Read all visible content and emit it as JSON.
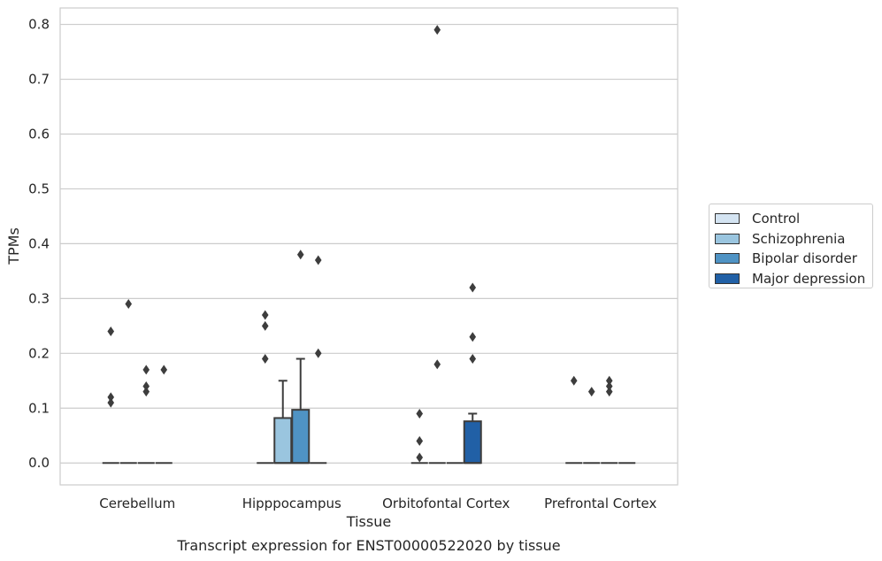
{
  "chart_data": {
    "type": "box",
    "title": "Transcript expression for ENST00000522020 by tissue",
    "xlabel": "Tissue",
    "ylabel": "TPMs",
    "ylim": [
      -0.04,
      0.83
    ],
    "yticks": [
      "0.0",
      "0.1",
      "0.2",
      "0.3",
      "0.4",
      "0.5",
      "0.6",
      "0.7",
      "0.8"
    ],
    "grid": "horizontal",
    "legend_position": "right",
    "categories": [
      "Cerebellum",
      "Hipppocampus",
      "Orbitofontal Cortex",
      "Prefrontal Cortex"
    ],
    "series": [
      {
        "name": "Control",
        "color": "#d4e4f2"
      },
      {
        "name": "Schizophrenia",
        "color": "#9ac5df"
      },
      {
        "name": "Bipolar disorder",
        "color": "#4f93c4"
      },
      {
        "name": "Major depression",
        "color": "#2160a6"
      }
    ],
    "boxes": [
      {
        "category": "Cerebellum",
        "series": "Control",
        "q1": 0,
        "median": 0,
        "q3": 0,
        "whisker_low": 0,
        "whisker_high": 0,
        "outliers": [
          0.11,
          0.12,
          0.24
        ]
      },
      {
        "category": "Cerebellum",
        "series": "Schizophrenia",
        "q1": 0,
        "median": 0,
        "q3": 0,
        "whisker_low": 0,
        "whisker_high": 0,
        "outliers": [
          0.29
        ]
      },
      {
        "category": "Cerebellum",
        "series": "Bipolar disorder",
        "q1": 0,
        "median": 0,
        "q3": 0,
        "whisker_low": 0,
        "whisker_high": 0,
        "outliers": [
          0.13,
          0.14,
          0.17
        ]
      },
      {
        "category": "Cerebellum",
        "series": "Major depression",
        "q1": 0,
        "median": 0,
        "q3": 0,
        "whisker_low": 0,
        "whisker_high": 0,
        "outliers": [
          0.17
        ]
      },
      {
        "category": "Hipppocampus",
        "series": "Control",
        "q1": 0,
        "median": 0,
        "q3": 0,
        "whisker_low": 0,
        "whisker_high": 0,
        "outliers": [
          0.19,
          0.25,
          0.27
        ]
      },
      {
        "category": "Hipppocampus",
        "series": "Schizophrenia",
        "q1": 0,
        "median": 0,
        "q3": 0.082,
        "whisker_low": 0,
        "whisker_high": 0.15,
        "outliers": []
      },
      {
        "category": "Hipppocampus",
        "series": "Bipolar disorder",
        "q1": 0,
        "median": 0,
        "q3": 0.097,
        "whisker_low": 0,
        "whisker_high": 0.19,
        "outliers": [
          0.38
        ]
      },
      {
        "category": "Hipppocampus",
        "series": "Major depression",
        "q1": 0,
        "median": 0,
        "q3": 0,
        "whisker_low": 0,
        "whisker_high": 0,
        "outliers": [
          0.2,
          0.37
        ]
      },
      {
        "category": "Orbitofontal Cortex",
        "series": "Control",
        "q1": 0,
        "median": 0,
        "q3": 0,
        "whisker_low": 0,
        "whisker_high": 0,
        "outliers": [
          0.01,
          0.04,
          0.09
        ]
      },
      {
        "category": "Orbitofontal Cortex",
        "series": "Schizophrenia",
        "q1": 0,
        "median": 0,
        "q3": 0,
        "whisker_low": 0,
        "whisker_high": 0,
        "outliers": [
          0.18,
          0.79
        ]
      },
      {
        "category": "Orbitofontal Cortex",
        "series": "Bipolar disorder",
        "q1": 0,
        "median": 0,
        "q3": 0,
        "whisker_low": 0,
        "whisker_high": 0,
        "outliers": []
      },
      {
        "category": "Orbitofontal Cortex",
        "series": "Major depression",
        "q1": 0,
        "median": 0,
        "q3": 0.076,
        "whisker_low": 0,
        "whisker_high": 0.09,
        "outliers": [
          0.19,
          0.23,
          0.32
        ]
      },
      {
        "category": "Prefrontal Cortex",
        "series": "Control",
        "q1": 0,
        "median": 0,
        "q3": 0,
        "whisker_low": 0,
        "whisker_high": 0,
        "outliers": [
          0.15
        ]
      },
      {
        "category": "Prefrontal Cortex",
        "series": "Schizophrenia",
        "q1": 0,
        "median": 0,
        "q3": 0,
        "whisker_low": 0,
        "whisker_high": 0,
        "outliers": [
          0.13
        ]
      },
      {
        "category": "Prefrontal Cortex",
        "series": "Bipolar disorder",
        "q1": 0,
        "median": 0,
        "q3": 0,
        "whisker_low": 0,
        "whisker_high": 0,
        "outliers": [
          0.13,
          0.14,
          0.15
        ]
      },
      {
        "category": "Prefrontal Cortex",
        "series": "Major depression",
        "q1": 0,
        "median": 0,
        "q3": 0,
        "whisker_low": 0,
        "whisker_high": 0,
        "outliers": []
      }
    ]
  }
}
